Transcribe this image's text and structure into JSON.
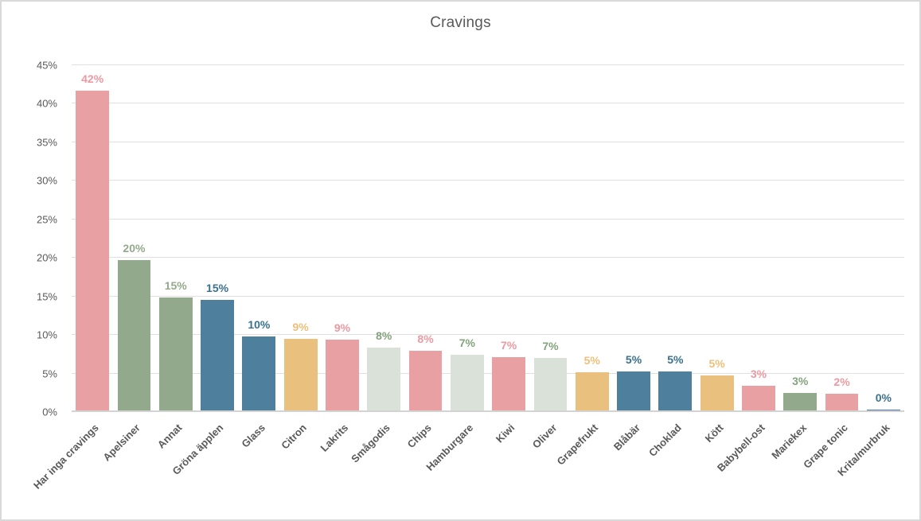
{
  "chart_data": {
    "type": "bar",
    "title": "Cravings",
    "xlabel": "",
    "ylabel": "",
    "ylim": [
      0,
      45
    ],
    "ytick_step": 5,
    "ytick_labels": [
      "0%",
      "5%",
      "10%",
      "15%",
      "20%",
      "25%",
      "30%",
      "35%",
      "40%",
      "45%"
    ],
    "grid": "horizontal-only",
    "legend": "none",
    "categories": [
      "Har inga cravings",
      "Apelsiner",
      "Annat",
      "Gröna äpplen",
      "Glass",
      "Citron",
      "Lakrits",
      "Smågodis",
      "Chips",
      "Hamburgare",
      "Kiwi",
      "Oliver",
      "Grapefrukt",
      "Blåbär",
      "Choklad",
      "Kött",
      "Babybell-ost",
      "Mariekex",
      "Grape tonic",
      "Krita/murbruk"
    ],
    "values": [
      41.7,
      19.7,
      14.9,
      14.6,
      9.8,
      9.5,
      9.4,
      8.4,
      7.9,
      7.4,
      7.1,
      7.0,
      5.2,
      5.3,
      5.3,
      4.8,
      3.4,
      2.5,
      2.4,
      0.3
    ],
    "display_labels": [
      "42%",
      "20%",
      "15%",
      "15%",
      "10%",
      "9%",
      "9%",
      "8%",
      "8%",
      "7%",
      "7%",
      "7%",
      "5%",
      "5%",
      "5%",
      "5%",
      "3%",
      "3%",
      "2%",
      "0%"
    ],
    "bar_colors": [
      "#E8A0A2",
      "#93A98C",
      "#93A98C",
      "#4E7F9C",
      "#4E7F9C",
      "#E9C07E",
      "#E8A0A2",
      "#D9E1D8",
      "#E8A0A2",
      "#D9E1D8",
      "#E8A0A2",
      "#D9E1D8",
      "#E9C07E",
      "#4E7F9C",
      "#4E7F9C",
      "#E9C07E",
      "#E8A0A2",
      "#93A98C",
      "#E8A0A2",
      "#4472C4"
    ],
    "label_colors": [
      "#EC99A1",
      "#93A98C",
      "#93A98C",
      "#39718F",
      "#39718F",
      "#EBBF79",
      "#EC99A1",
      "#84A37D",
      "#EC99A1",
      "#84A37D",
      "#EC99A1",
      "#84A37D",
      "#EBBF79",
      "#39718F",
      "#39718F",
      "#EBBF79",
      "#EC99A1",
      "#84A37D",
      "#EC99A1",
      "#39718F"
    ]
  },
  "style_colors": {
    "axis_text": "#595959",
    "title_text": "#595959",
    "gridline": "#e0e0e0",
    "axis_baseline": "#d3d3d3",
    "chart_border": "#d9d9d9",
    "background": "#ffffff"
  }
}
